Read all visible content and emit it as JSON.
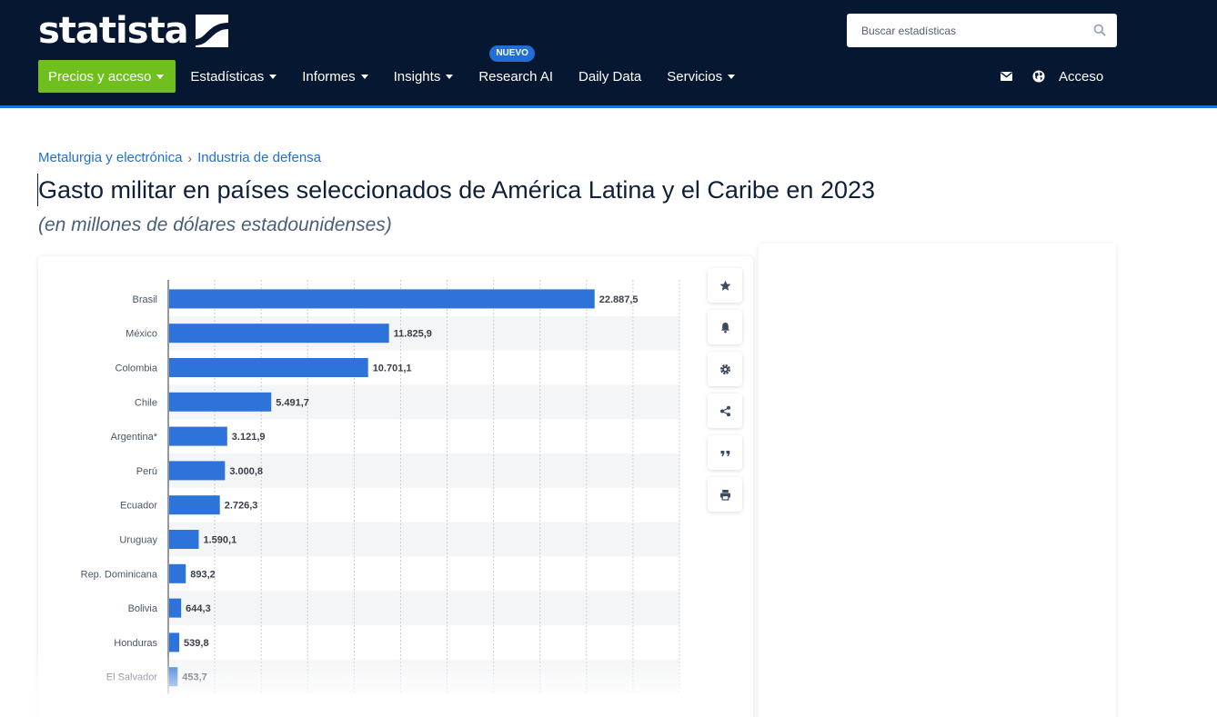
{
  "header": {
    "logo_text": "statista",
    "search": {
      "placeholder": "Buscar estadísticas"
    },
    "nav": {
      "pricing": "Precios y acceso",
      "statistics": "Estadísticas",
      "reports": "Informes",
      "insights": "Insights",
      "research_ai": "Research AI",
      "research_ai_badge": "NUEVO",
      "daily_data": "Daily Data",
      "services": "Servicios"
    },
    "login": "Acceso"
  },
  "breadcrumb": {
    "items": [
      "Metalurgia y electrónica",
      "Industria de defensa"
    ],
    "separator": "›"
  },
  "page": {
    "title": "Gasto militar en países seleccionados de América Latina y el Caribe en 2023",
    "subtitle": "(en millones de dólares estadounidenses)"
  },
  "colors": {
    "header_bg": "#061731",
    "accent_green": "#6fbf1f",
    "bar_blue": "#2d73d9",
    "link_blue": "#1f6fd6"
  },
  "tools": [
    "star-icon",
    "bell-icon",
    "gear-icon",
    "share-icon",
    "quote-icon",
    "print-icon"
  ],
  "chart_data": {
    "type": "bar",
    "orientation": "horizontal",
    "categories": [
      "Brasil",
      "México",
      "Colombia",
      "Chile",
      "Argentina*",
      "Perú",
      "Ecuador",
      "Uruguay",
      "Rep. Dominicana",
      "Bolivia",
      "Honduras",
      "El Salvador"
    ],
    "values": [
      22887.5,
      11825.9,
      10701.1,
      5491.7,
      3121.9,
      3000.8,
      2726.3,
      1590.1,
      893.2,
      644.3,
      539.8,
      453.7
    ],
    "value_labels": [
      "22.887,5",
      "11.825,9",
      "10.701,1",
      "5.491,7",
      "3.121,9",
      "3.000,8",
      "2.726,3",
      "1.590,1",
      "893,2",
      "644,3",
      "539,8",
      "453,7"
    ],
    "xlim": [
      0,
      27500
    ],
    "grid": true
  }
}
